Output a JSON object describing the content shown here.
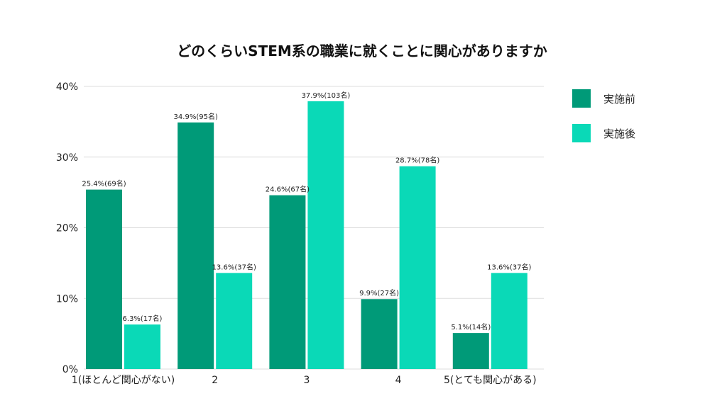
{
  "chart_data": {
    "type": "bar",
    "title": "どのくらいSTEM系の職業に就くことに関心がありますか",
    "xlabel": "",
    "ylabel": "",
    "categories": [
      "1(ほとんど関心がない)",
      "2",
      "3",
      "4",
      "5(とても関心がある)"
    ],
    "ylim": [
      0,
      40
    ],
    "yticks": [
      "0%",
      "10%",
      "20%",
      "30%",
      "40%"
    ],
    "grid": true,
    "legend_position": "right",
    "series": [
      {
        "name": "実施前",
        "color": "#009a78",
        "values": [
          25.4,
          34.9,
          24.6,
          9.9,
          5.1
        ],
        "labels": [
          "25.4%(69名)",
          "34.9%(95名)",
          "24.6%(67名)",
          "9.9%(27名)",
          "5.1%(14名)"
        ]
      },
      {
        "name": "実施後",
        "color": "#0ad9b7",
        "values": [
          6.3,
          13.6,
          37.9,
          28.7,
          13.6
        ],
        "labels": [
          "6.3%(17名)",
          "13.6%(37名)",
          "37.9%(103名)",
          "28.7%(78名)",
          "13.6%(37名)"
        ]
      }
    ]
  }
}
